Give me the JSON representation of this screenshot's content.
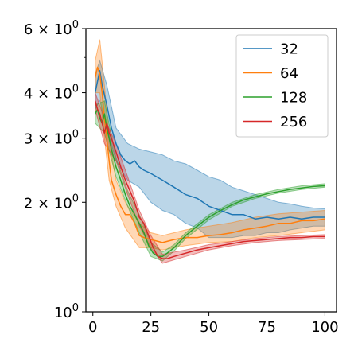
{
  "chart_data": {
    "type": "line",
    "title": "",
    "xlabel": "",
    "ylabel": "",
    "xlim": [
      -3,
      105
    ],
    "ylim": [
      1,
      6
    ],
    "yscale": "log",
    "grid": false,
    "legend_position": "top-right",
    "x_ticks": [
      {
        "value": 0,
        "label": "0"
      },
      {
        "value": 25,
        "label": "25"
      },
      {
        "value": 50,
        "label": "50"
      },
      {
        "value": 75,
        "label": "75"
      },
      {
        "value": 100,
        "label": "100"
      }
    ],
    "y_ticks": [
      {
        "value": 1,
        "base": "10",
        "exp": "0",
        "coef": ""
      },
      {
        "value": 2,
        "base": "10",
        "exp": "0",
        "coef": "2 × "
      },
      {
        "value": 3,
        "base": "10",
        "exp": "0",
        "coef": "3 × "
      },
      {
        "value": 4,
        "base": "10",
        "exp": "0",
        "coef": "4 × "
      },
      {
        "value": 6,
        "base": "10",
        "exp": "0",
        "coef": "6 × "
      }
    ],
    "y_minor_ticks": [
      5
    ],
    "series": [
      {
        "name": "32",
        "color": "#1f77b4",
        "points": [
          [
            1,
            4.0
          ],
          [
            2,
            4.3
          ],
          [
            3,
            4.6
          ],
          [
            4,
            4.2
          ],
          [
            6,
            3.7
          ],
          [
            8,
            3.2
          ],
          [
            10,
            2.9
          ],
          [
            12,
            2.7
          ],
          [
            14,
            2.6
          ],
          [
            16,
            2.55
          ],
          [
            18,
            2.6
          ],
          [
            20,
            2.5
          ],
          [
            22,
            2.45
          ],
          [
            25,
            2.4
          ],
          [
            30,
            2.3
          ],
          [
            35,
            2.2
          ],
          [
            40,
            2.1
          ],
          [
            45,
            2.05
          ],
          [
            50,
            1.95
          ],
          [
            55,
            1.9
          ],
          [
            60,
            1.85
          ],
          [
            65,
            1.85
          ],
          [
            70,
            1.8
          ],
          [
            75,
            1.82
          ],
          [
            80,
            1.8
          ],
          [
            85,
            1.82
          ],
          [
            90,
            1.8
          ],
          [
            95,
            1.82
          ],
          [
            100,
            1.82
          ]
        ],
        "band": [
          [
            1,
            3.6,
            4.5
          ],
          [
            3,
            3.8,
            4.9
          ],
          [
            6,
            3.2,
            4.2
          ],
          [
            10,
            2.6,
            3.2
          ],
          [
            15,
            2.3,
            2.9
          ],
          [
            20,
            2.2,
            2.8
          ],
          [
            25,
            2.0,
            2.75
          ],
          [
            30,
            1.9,
            2.7
          ],
          [
            35,
            1.85,
            2.6
          ],
          [
            40,
            1.75,
            2.55
          ],
          [
            45,
            1.7,
            2.45
          ],
          [
            50,
            1.6,
            2.35
          ],
          [
            55,
            1.6,
            2.3
          ],
          [
            60,
            1.6,
            2.2
          ],
          [
            65,
            1.62,
            2.15
          ],
          [
            70,
            1.62,
            2.1
          ],
          [
            75,
            1.65,
            2.05
          ],
          [
            80,
            1.65,
            2.0
          ],
          [
            85,
            1.68,
            1.98
          ],
          [
            90,
            1.7,
            1.95
          ],
          [
            95,
            1.72,
            1.93
          ],
          [
            100,
            1.72,
            1.92
          ]
        ]
      },
      {
        "name": "64",
        "color": "#ff7f0e",
        "points": [
          [
            1,
            4.4
          ],
          [
            2,
            4.7
          ],
          [
            3,
            4.5
          ],
          [
            4,
            4.0
          ],
          [
            5,
            3.4
          ],
          [
            6,
            3.0
          ],
          [
            7,
            2.6
          ],
          [
            8,
            2.3
          ],
          [
            10,
            2.1
          ],
          [
            12,
            1.95
          ],
          [
            14,
            1.85
          ],
          [
            16,
            1.85
          ],
          [
            18,
            1.75
          ],
          [
            20,
            1.62
          ],
          [
            22,
            1.6
          ],
          [
            25,
            1.58
          ],
          [
            30,
            1.55
          ],
          [
            35,
            1.58
          ],
          [
            40,
            1.6
          ],
          [
            45,
            1.6
          ],
          [
            50,
            1.62
          ],
          [
            55,
            1.63
          ],
          [
            60,
            1.65
          ],
          [
            65,
            1.68
          ],
          [
            70,
            1.7
          ],
          [
            75,
            1.72
          ],
          [
            80,
            1.75
          ],
          [
            85,
            1.75
          ],
          [
            90,
            1.78
          ],
          [
            95,
            1.78
          ],
          [
            100,
            1.8
          ]
        ],
        "band": [
          [
            1,
            4.0,
            4.9
          ],
          [
            3,
            4.0,
            5.6
          ],
          [
            5,
            3.0,
            4.2
          ],
          [
            7,
            2.3,
            3.0
          ],
          [
            10,
            1.95,
            2.3
          ],
          [
            14,
            1.7,
            2.0
          ],
          [
            20,
            1.5,
            1.75
          ],
          [
            25,
            1.5,
            1.65
          ],
          [
            30,
            1.48,
            1.62
          ],
          [
            40,
            1.52,
            1.68
          ],
          [
            50,
            1.55,
            1.72
          ],
          [
            60,
            1.56,
            1.76
          ],
          [
            70,
            1.6,
            1.82
          ],
          [
            80,
            1.62,
            1.86
          ],
          [
            90,
            1.65,
            1.88
          ],
          [
            100,
            1.68,
            1.9
          ]
        ]
      },
      {
        "name": "128",
        "color": "#2ca02c",
        "points": [
          [
            1,
            3.5
          ],
          [
            2,
            3.6
          ],
          [
            3,
            3.4
          ],
          [
            4,
            3.3
          ],
          [
            5,
            3.5
          ],
          [
            6,
            3.2
          ],
          [
            7,
            3.0
          ],
          [
            8,
            2.8
          ],
          [
            10,
            2.5
          ],
          [
            12,
            2.3
          ],
          [
            14,
            2.1
          ],
          [
            16,
            1.95
          ],
          [
            18,
            1.85
          ],
          [
            20,
            1.75
          ],
          [
            22,
            1.65
          ],
          [
            24,
            1.52
          ],
          [
            26,
            1.45
          ],
          [
            28,
            1.42
          ],
          [
            30,
            1.42
          ],
          [
            32,
            1.45
          ],
          [
            35,
            1.5
          ],
          [
            40,
            1.62
          ],
          [
            45,
            1.72
          ],
          [
            50,
            1.82
          ],
          [
            55,
            1.9
          ],
          [
            60,
            1.97
          ],
          [
            65,
            2.03
          ],
          [
            70,
            2.07
          ],
          [
            75,
            2.11
          ],
          [
            80,
            2.14
          ],
          [
            85,
            2.17
          ],
          [
            90,
            2.19
          ],
          [
            95,
            2.21
          ],
          [
            100,
            2.22
          ]
        ],
        "band": [
          [
            1,
            3.3,
            3.7
          ],
          [
            5,
            3.1,
            3.8
          ],
          [
            10,
            2.35,
            2.65
          ],
          [
            15,
            1.95,
            2.15
          ],
          [
            20,
            1.65,
            1.85
          ],
          [
            25,
            1.42,
            1.55
          ],
          [
            30,
            1.38,
            1.46
          ],
          [
            35,
            1.47,
            1.53
          ],
          [
            40,
            1.59,
            1.65
          ],
          [
            50,
            1.79,
            1.85
          ],
          [
            60,
            1.95,
            2.0
          ],
          [
            70,
            2.05,
            2.1
          ],
          [
            80,
            2.12,
            2.17
          ],
          [
            90,
            2.17,
            2.22
          ],
          [
            100,
            2.2,
            2.25
          ]
        ]
      },
      {
        "name": "256",
        "color": "#d62728",
        "points": [
          [
            1,
            3.8
          ],
          [
            2,
            3.6
          ],
          [
            3,
            3.5
          ],
          [
            4,
            3.3
          ],
          [
            5,
            3.1
          ],
          [
            6,
            3.3
          ],
          [
            7,
            3.1
          ],
          [
            8,
            3.0
          ],
          [
            10,
            2.75
          ],
          [
            12,
            2.5
          ],
          [
            14,
            2.3
          ],
          [
            16,
            2.15
          ],
          [
            18,
            2.0
          ],
          [
            20,
            1.82
          ],
          [
            22,
            1.75
          ],
          [
            24,
            1.62
          ],
          [
            26,
            1.5
          ],
          [
            28,
            1.42
          ],
          [
            30,
            1.4
          ],
          [
            32,
            1.4
          ],
          [
            35,
            1.42
          ],
          [
            40,
            1.45
          ],
          [
            45,
            1.48
          ],
          [
            50,
            1.5
          ],
          [
            55,
            1.52
          ],
          [
            60,
            1.54
          ],
          [
            65,
            1.56
          ],
          [
            70,
            1.57
          ],
          [
            75,
            1.58
          ],
          [
            80,
            1.59
          ],
          [
            85,
            1.6
          ],
          [
            90,
            1.6
          ],
          [
            95,
            1.61
          ],
          [
            100,
            1.61
          ]
        ],
        "band": [
          [
            1,
            3.6,
            4.0
          ],
          [
            5,
            2.9,
            3.4
          ],
          [
            10,
            2.6,
            2.9
          ],
          [
            15,
            2.1,
            2.35
          ],
          [
            20,
            1.72,
            1.9
          ],
          [
            25,
            1.5,
            1.62
          ],
          [
            30,
            1.36,
            1.44
          ],
          [
            40,
            1.42,
            1.48
          ],
          [
            50,
            1.48,
            1.53
          ],
          [
            60,
            1.52,
            1.56
          ],
          [
            70,
            1.55,
            1.59
          ],
          [
            80,
            1.57,
            1.61
          ],
          [
            90,
            1.58,
            1.62
          ],
          [
            100,
            1.59,
            1.63
          ]
        ]
      }
    ]
  }
}
